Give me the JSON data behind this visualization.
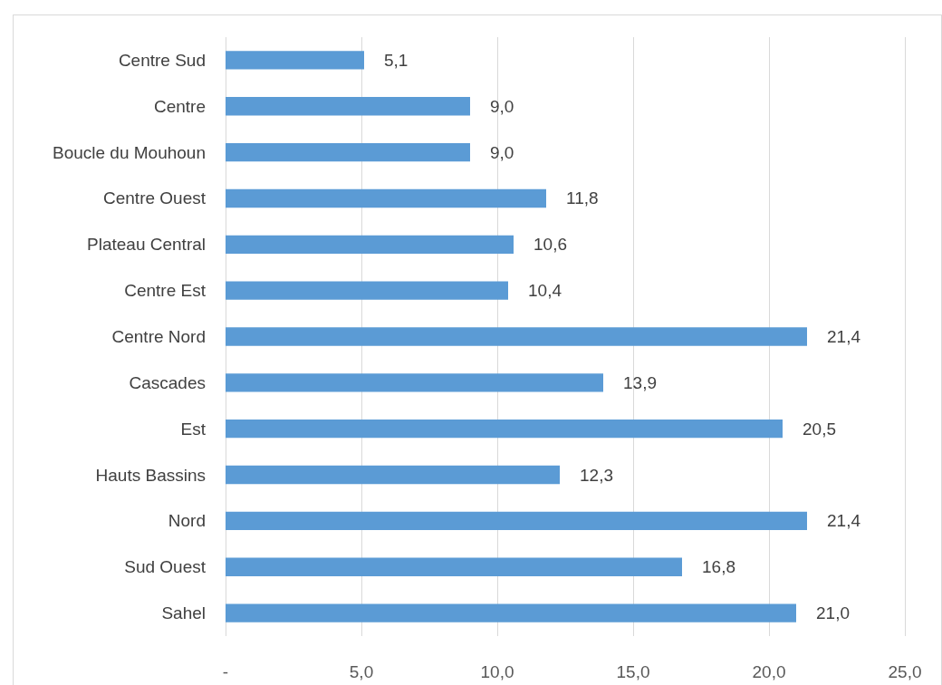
{
  "chart_data": {
    "type": "bar",
    "orientation": "horizontal",
    "categories": [
      "Centre Sud",
      "Centre",
      "Boucle du Mouhoun",
      "Centre Ouest",
      "Plateau Central",
      "Centre Est",
      "Centre Nord",
      "Cascades",
      "Est",
      "Hauts Bassins",
      "Nord",
      "Sud Ouest",
      "Sahel"
    ],
    "values": [
      5.1,
      9.0,
      9.0,
      11.8,
      10.6,
      10.4,
      21.4,
      13.9,
      20.5,
      12.3,
      21.4,
      16.8,
      21.0
    ],
    "value_labels": [
      "5,1",
      "9,0",
      "9,0",
      "11,8",
      "10,6",
      "10,4",
      "21,4",
      "13,9",
      "20,5",
      "12,3",
      "21,4",
      "16,8",
      "21,0"
    ],
    "color": "#5b9bd5",
    "xlim": [
      0,
      25
    ],
    "xticks": [
      {
        "value": 0,
        "label": "-"
      },
      {
        "value": 5,
        "label": "5,0"
      },
      {
        "value": 10,
        "label": "10,0"
      },
      {
        "value": 15,
        "label": "15,0"
      },
      {
        "value": 20,
        "label": "20,0"
      },
      {
        "value": 25,
        "label": "25,0"
      }
    ],
    "grid": "x"
  }
}
